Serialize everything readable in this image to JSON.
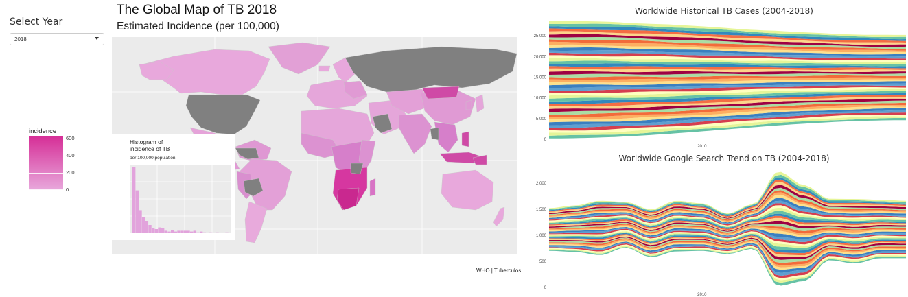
{
  "sidebar": {
    "select_label": "Select Year",
    "selected_year": "2018"
  },
  "legend": {
    "title": "incidence",
    "ticks": [
      "600",
      "400",
      "200",
      "0"
    ],
    "colors": {
      "high": "#d62f97",
      "low": "#e8a8dc"
    }
  },
  "map": {
    "title": "The Global Map of TB 2018",
    "subtitle": "Estimated Incidence (per 100,000)",
    "caption": "WHO | Tuberculos",
    "no_data_color": "#808080"
  },
  "histogram": {
    "title_line1": "Histogram of",
    "title_line2": "incidence of TB",
    "subtitle": "per 100,000 population"
  },
  "chart_data": [
    {
      "type": "histogram",
      "title": "Histogram of incidence of TB",
      "subtitle": "per 100,000 population",
      "values": [
        80,
        52,
        28,
        20,
        15,
        10,
        6,
        5,
        7,
        6,
        3,
        2,
        4,
        2,
        3,
        3,
        3,
        3,
        2,
        3,
        1,
        2,
        1,
        0,
        1,
        0,
        1,
        0,
        0,
        1
      ]
    },
    {
      "type": "area",
      "title": "Worldwide Historical TB Cases (2004-2018)",
      "x_tick": "2010",
      "y_ticks": [
        "0",
        "5,000",
        "10,000",
        "15,000",
        "20,000",
        "25,000"
      ],
      "ylim": [
        0,
        29000
      ],
      "top": {
        "x": [
          2004,
          2018
        ],
        "y": [
          28600,
          25200
        ]
      },
      "bottom": {
        "x": [
          2004,
          2018
        ],
        "y": [
          200,
          4600
        ]
      }
    },
    {
      "type": "area",
      "title": "Worldwide Google Search Trend on TB (2004-2018)",
      "x_tick": "2010",
      "y_ticks": [
        "0",
        "500",
        "1,000",
        "1,500",
        "2,000"
      ],
      "ylim": [
        0,
        2300
      ],
      "top": {
        "x": [
          2004,
          2005,
          2006,
          2007,
          2008,
          2009,
          2010,
          2011,
          2012,
          2013,
          2014,
          2015,
          2016,
          2017,
          2018
        ],
        "y": [
          1520,
          1570,
          1660,
          1640,
          1500,
          1660,
          1610,
          1420,
          1600,
          2220,
          1960,
          1700,
          1700,
          1680,
          1660
        ]
      },
      "bottom": {
        "x": [
          2004,
          2005,
          2006,
          2007,
          2008,
          2009,
          2010,
          2011,
          2012,
          2013,
          2014,
          2015,
          2016,
          2017,
          2018
        ],
        "y": [
          700,
          680,
          620,
          760,
          580,
          690,
          700,
          640,
          740,
          30,
          120,
          520,
          460,
          560,
          560
        ]
      }
    }
  ],
  "right_panel": {
    "chart1_title": "Worldwide Historical TB Cases (2004-2018)",
    "chart2_title": "Worldwide Google Search Trend on TB (2004-2018)"
  },
  "palette": [
    "#3a7fc0",
    "#f26b3a",
    "#fdd48a",
    "#66c2a5",
    "#d53e4f",
    "#fee08b",
    "#abdda4",
    "#f46d43",
    "#e6f598",
    "#5e9fd0",
    "#fdae61",
    "#9e0142",
    "#3288bd",
    "#ffffbf"
  ]
}
